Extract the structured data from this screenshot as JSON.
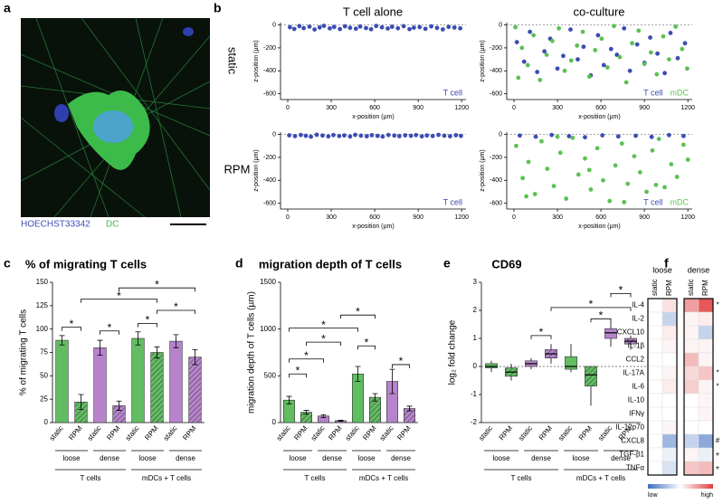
{
  "figure": {
    "labels": [
      "a",
      "b",
      "c",
      "d",
      "e",
      "f"
    ],
    "image_legend": [
      "HOECHST33342",
      "DC"
    ],
    "columns": [
      "T cell alone",
      "co-culture"
    ],
    "rows": [
      "static",
      "RPM"
    ]
  },
  "chart_data": [
    {
      "type": "scatter",
      "xlabel": "x-position (µm)",
      "ylabel": "z-position (µm)",
      "xlim": [
        -50,
        1230
      ],
      "xticks": [
        0,
        300,
        600,
        900,
        1200
      ],
      "ylim": [
        -650,
        20
      ],
      "yticks": [
        0,
        -200,
        -400,
        -600
      ],
      "reference_line": 0,
      "series": [
        {
          "name": "T cell",
          "color": "#3b4db3",
          "x": [
            15,
            45,
            80,
            110,
            150,
            185,
            220,
            250,
            290,
            320,
            360,
            395,
            430,
            470,
            500,
            540,
            575,
            610,
            650,
            690,
            720,
            760,
            800,
            840,
            870,
            910,
            950,
            990,
            1030,
            1070,
            1110,
            1150,
            1190
          ],
          "values": [
            -20,
            -35,
            -10,
            -28,
            -15,
            -40,
            -22,
            -8,
            -30,
            -18,
            -36,
            -12,
            -25,
            -33,
            -14,
            -27,
            -38,
            -9,
            -21,
            -31,
            -16,
            -29,
            -11,
            -37,
            -24,
            -19,
            -34,
            -13,
            -26,
            -39,
            -17,
            -23,
            -30
          ]
        }
      ]
    },
    {
      "type": "scatter",
      "xlabel": "x-position (µm)",
      "ylabel": "z-position (µm)",
      "xlim": [
        -50,
        1230
      ],
      "xticks": [
        0,
        300,
        600,
        900,
        1200
      ],
      "ylim": [
        -650,
        20
      ],
      "yticks": [
        0,
        -200,
        -400,
        -600
      ],
      "reference_line": 0,
      "series": [
        {
          "name": "T cell",
          "color": "#3b4db3",
          "x": [
            20,
            70,
            110,
            160,
            210,
            250,
            300,
            340,
            390,
            440,
            480,
            530,
            580,
            620,
            670,
            710,
            760,
            800,
            850,
            900,
            940,
            990,
            1040,
            1080,
            1130,
            1180
          ],
          "values": [
            -150,
            -320,
            -60,
            -410,
            -230,
            -120,
            -380,
            -270,
            -40,
            -300,
            -190,
            -440,
            -90,
            -350,
            -210,
            -260,
            -30,
            -400,
            -170,
            -330,
            -110,
            -250,
            -420,
            -70,
            -290,
            -160
          ]
        },
        {
          "name": "mDC",
          "color": "#5cc152",
          "x": [
            10,
            55,
            95,
            135,
            180,
            225,
            265,
            310,
            350,
            395,
            435,
            475,
            520,
            560,
            605,
            645,
            690,
            730,
            775,
            815,
            860,
            900,
            945,
            985,
            1030,
            1070,
            1115,
            1160,
            1195,
            30
          ],
          "values": [
            -20,
            -200,
            -350,
            -90,
            -480,
            -260,
            -140,
            -30,
            -400,
            -310,
            -180,
            -60,
            -450,
            -220,
            -120,
            -370,
            -10,
            -280,
            -500,
            -160,
            -50,
            -340,
            -240,
            -430,
            -100,
            -300,
            -15,
            -210,
            -380,
            -460
          ]
        }
      ]
    },
    {
      "type": "scatter",
      "xlabel": "x-position (µm)",
      "ylabel": "z-position (µm)",
      "xlim": [
        -50,
        1230
      ],
      "xticks": [
        0,
        300,
        600,
        900,
        1200
      ],
      "ylim": [
        -650,
        20
      ],
      "yticks": [
        0,
        -200,
        -400,
        -600
      ],
      "reference_line": 0,
      "series": [
        {
          "name": "T cell",
          "color": "#3b4db3",
          "x": [
            10,
            50,
            90,
            125,
            160,
            200,
            240,
            280,
            315,
            355,
            390,
            430,
            465,
            505,
            545,
            580,
            620,
            655,
            695,
            735,
            770,
            810,
            850,
            885,
            925,
            960,
            1000,
            1040,
            1080,
            1120,
            1160,
            1195
          ],
          "values": [
            -8,
            -15,
            -5,
            -12,
            -20,
            -3,
            -10,
            -17,
            -6,
            -14,
            -9,
            -18,
            -4,
            -11,
            -16,
            -7,
            -13,
            -19,
            -5,
            -10,
            -15,
            -8,
            -12,
            -6,
            -17,
            -9,
            -14,
            -4,
            -11,
            -16,
            -7,
            -13
          ]
        }
      ]
    },
    {
      "type": "scatter",
      "xlabel": "x-position (µm)",
      "ylabel": "z-position (µm)",
      "xlim": [
        -50,
        1230
      ],
      "xticks": [
        0,
        300,
        600,
        900,
        1200
      ],
      "ylim": [
        -650,
        20
      ],
      "yticks": [
        0,
        -200,
        -400,
        -600
      ],
      "reference_line": 0,
      "series": [
        {
          "name": "T cell",
          "color": "#3b4db3",
          "x": [
            40,
            150,
            260,
            380,
            490,
            610,
            720,
            840,
            950,
            1070,
            1170
          ],
          "values": [
            -10,
            -20,
            -5,
            -15,
            -25,
            -8,
            -18,
            -12,
            -22,
            -6,
            -14
          ]
        },
        {
          "name": "mDC",
          "color": "#5cc152",
          "x": [
            15,
            60,
            100,
            145,
            190,
            230,
            275,
            320,
            360,
            405,
            445,
            490,
            530,
            575,
            615,
            660,
            700,
            745,
            785,
            830,
            870,
            915,
            955,
            1000,
            1040,
            1085,
            1125,
            1170,
            1200,
            85,
            300,
            520,
            760,
            980
          ],
          "values": [
            -100,
            -380,
            -240,
            -520,
            -60,
            -300,
            -450,
            -160,
            -560,
            -30,
            -350,
            -210,
            -480,
            -120,
            -400,
            -580,
            -270,
            -80,
            -430,
            -190,
            -330,
            -500,
            -140,
            -40,
            -460,
            -260,
            -370,
            -90,
            -220,
            -540,
            -20,
            -310,
            -590,
            -440
          ]
        }
      ]
    },
    {
      "type": "bar",
      "title": "% of migrating T cells",
      "ylabel": "% of migrating T cells",
      "categories": [
        "static",
        "RPM",
        "static",
        "RPM",
        "static",
        "RPM",
        "static",
        "RPM"
      ],
      "values": [
        88,
        22,
        80,
        18,
        90,
        75,
        87,
        70
      ],
      "errors": [
        5,
        8,
        8,
        5,
        7,
        6,
        7,
        8
      ],
      "colors": [
        "#62bd62",
        "#62bd62",
        "#b683cc",
        "#b683cc",
        "#62bd62",
        "#62bd62",
        "#b683cc",
        "#b683cc"
      ],
      "hatched": [
        false,
        true,
        false,
        true,
        false,
        true,
        false,
        true
      ],
      "ylim": [
        0,
        150
      ],
      "yticks": [
        0,
        25,
        50,
        75,
        100,
        125,
        150
      ],
      "group_labels": [
        "loose",
        "dense",
        "loose",
        "dense"
      ],
      "super_groups": [
        "T cells",
        "mDCs + T cells"
      ],
      "significance": [
        "*",
        "*",
        "*",
        "*",
        "*",
        "*"
      ]
    },
    {
      "type": "bar",
      "title": "migration depth of T cells",
      "ylabel": "migration depth of T cells (µm)",
      "categories": [
        "static",
        "RPM",
        "static",
        "RPM",
        "static",
        "RPM",
        "static",
        "RPM"
      ],
      "values": [
        240,
        110,
        70,
        20,
        520,
        270,
        440,
        150
      ],
      "errors": [
        40,
        20,
        15,
        5,
        80,
        40,
        130,
        25
      ],
      "colors": [
        "#62bd62",
        "#62bd62",
        "#b683cc",
        "#b683cc",
        "#62bd62",
        "#62bd62",
        "#b683cc",
        "#b683cc"
      ],
      "hatched": [
        false,
        true,
        false,
        true,
        false,
        true,
        false,
        true
      ],
      "ylim": [
        0,
        1500
      ],
      "yticks": [
        0,
        500,
        1000,
        1500
      ],
      "group_labels": [
        "loose",
        "dense",
        "loose",
        "dense"
      ],
      "super_groups": [
        "T cells",
        "mDCs + T cells"
      ],
      "significance": [
        "*",
        "*",
        "*",
        "*",
        "*",
        "*",
        "*"
      ]
    },
    {
      "type": "box",
      "title": "CD69",
      "ylabel": "log₂ fold change",
      "categories": [
        "static",
        "RPM",
        "static",
        "RPM",
        "static",
        "RPM",
        "static",
        "RPM"
      ],
      "boxes": [
        {
          "min": -0.2,
          "q1": -0.05,
          "median": 0,
          "q3": 0.1,
          "max": 0.2
        },
        {
          "min": -0.5,
          "q1": -0.35,
          "median": -0.2,
          "q3": -0.05,
          "max": 0.1
        },
        {
          "min": -0.1,
          "q1": 0,
          "median": 0.1,
          "q3": 0.2,
          "max": 0.3
        },
        {
          "min": 0.1,
          "q1": 0.3,
          "median": 0.45,
          "q3": 0.6,
          "max": 0.8
        },
        {
          "min": -0.2,
          "q1": -0.1,
          "median": 0,
          "q3": 0.35,
          "max": 0.8
        },
        {
          "min": -1.4,
          "q1": -0.7,
          "median": -0.3,
          "q3": 0,
          "max": 0
        },
        {
          "min": 0.7,
          "q1": 1.0,
          "median": 1.2,
          "q3": 1.35,
          "max": 1.6
        },
        {
          "min": 0.6,
          "q1": 0.8,
          "median": 0.9,
          "q3": 1.0,
          "max": 1.1
        }
      ],
      "colors": [
        "#62bd62",
        "#62bd62",
        "#b683cc",
        "#b683cc",
        "#62bd62",
        "#62bd62",
        "#b683cc",
        "#b683cc"
      ],
      "hatched": [
        false,
        true,
        false,
        true,
        false,
        true,
        false,
        true
      ],
      "ylim": [
        -2,
        3
      ],
      "yticks": [
        -2,
        -1,
        0,
        1,
        2,
        3
      ],
      "reference_line": 0,
      "group_labels": [
        "loose",
        "dense",
        "loose",
        "dense"
      ],
      "super_groups": [
        "T cells",
        "mDCs + T cells"
      ],
      "significance": [
        "*",
        "*",
        "*",
        "*"
      ]
    },
    {
      "type": "heatmap",
      "groups": [
        "loose",
        "dense"
      ],
      "columns": [
        "static",
        "RPM"
      ],
      "rows": [
        "IL-4",
        "IL-2",
        "CXCL10",
        "IL-1β",
        "CCL2",
        "IL-17A",
        "IL-6",
        "IL-10",
        "IFNγ",
        "IL-12p70",
        "CXCL8",
        "TGF-β1",
        "TNFα"
      ],
      "values": [
        [
          0,
          0.15,
          0.5,
          0.85
        ],
        [
          0,
          -0.3,
          0.05,
          0.1
        ],
        [
          0,
          0.1,
          0.05,
          -0.3
        ],
        [
          0,
          0.05,
          0.05,
          0.05
        ],
        [
          0,
          0,
          0.35,
          0.05
        ],
        [
          0,
          0.05,
          0.2,
          0.3
        ],
        [
          0,
          0.1,
          0.25,
          0.05
        ],
        [
          0,
          0,
          0,
          0.05
        ],
        [
          0,
          0,
          0,
          0.05
        ],
        [
          0,
          0.05,
          0,
          0
        ],
        [
          0,
          -0.5,
          -0.3,
          -0.6
        ],
        [
          0,
          -0.1,
          0.05,
          -0.1
        ],
        [
          0,
          -0.2,
          0.3,
          0.35
        ]
      ],
      "row_marks": [
        "*",
        null,
        null,
        null,
        null,
        "*",
        "*",
        null,
        null,
        null,
        "#",
        "+",
        "+"
      ],
      "clim": [
        -1,
        1
      ],
      "colors": [
        "#3d6fc2",
        "#ffffff",
        "#e03c3c"
      ],
      "colorbar_labels": [
        "low",
        "high"
      ]
    }
  ]
}
